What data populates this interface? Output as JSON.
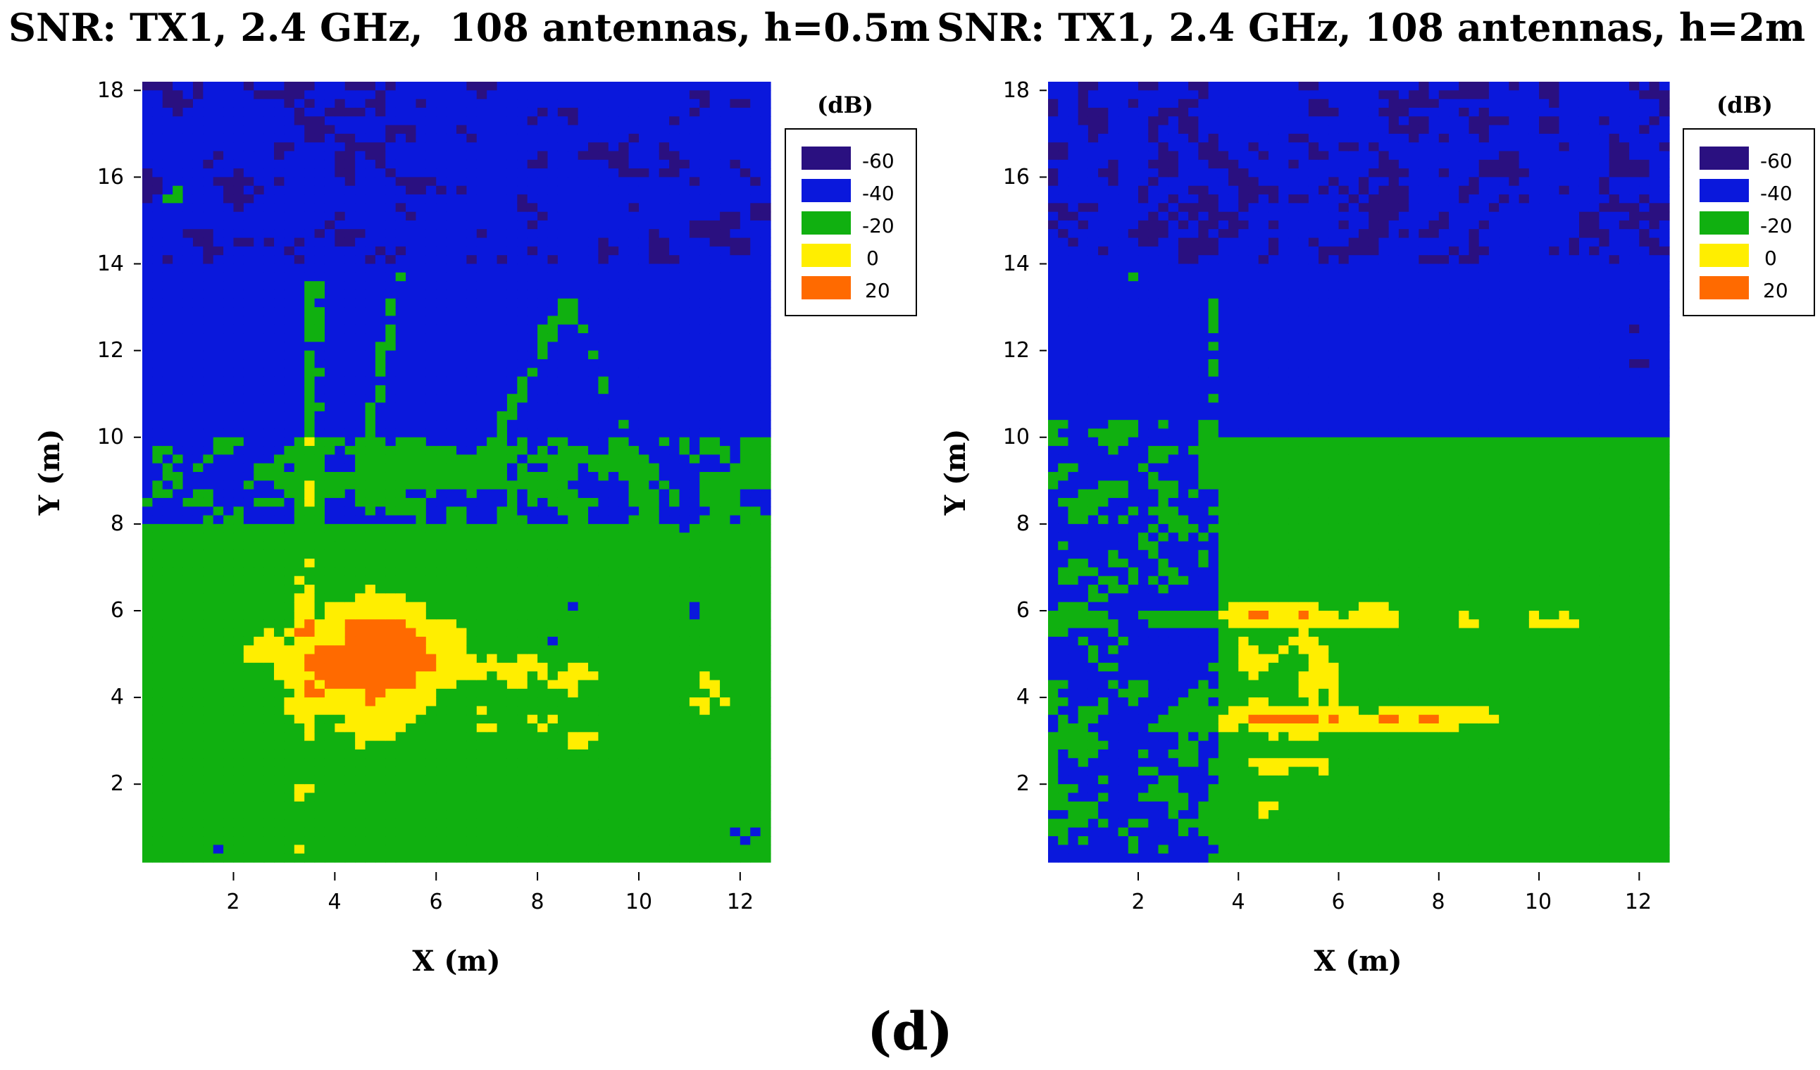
{
  "figure": {
    "caption": "(d)"
  },
  "chart_data": [
    {
      "type": "heatmap",
      "title": "SNR: TX1, 2.4 GHz,  108 antennas, h=0.5m",
      "xlabel": "X (m)",
      "ylabel": "Y (m)",
      "xlim": [
        0.2,
        12.6
      ],
      "ylim": [
        0.2,
        18.2
      ],
      "xticks": [
        2,
        4,
        6,
        8,
        10,
        12
      ],
      "yticks": [
        2,
        4,
        6,
        8,
        10,
        12,
        14,
        16,
        18
      ],
      "colorbar": {
        "title": "(dB)",
        "levels": [
          {
            "value": -60,
            "label": "-60",
            "color": "#2a1080"
          },
          {
            "value": -40,
            "label": "-40",
            "color": "#0a18dc"
          },
          {
            "value": -20,
            "label": "-20",
            "color": "#10b010"
          },
          {
            "value": 0,
            "label": "0",
            "color": "#ffee00"
          },
          {
            "value": 20,
            "label": "20",
            "color": "#ff6a00"
          }
        ]
      },
      "hotspots": [
        {
          "x": 4.6,
          "y": 4.7,
          "sx": 0.9,
          "sy": 0.9,
          "amp": 46
        },
        {
          "x": 5.0,
          "y": 5.6,
          "sx": 0.5,
          "sy": 0.4,
          "amp": 22
        },
        {
          "x": 6.0,
          "y": 4.9,
          "sx": 1.0,
          "sy": 0.4,
          "amp": 16
        },
        {
          "x": 8.4,
          "y": 4.5,
          "sx": 0.8,
          "sy": 0.3,
          "amp": 16
        },
        {
          "x": 5.8,
          "y": 9.2,
          "sx": 0.9,
          "sy": 0.3,
          "amp": 14
        },
        {
          "x": 7.5,
          "y": 3.4,
          "sx": 1.5,
          "sy": 0.5,
          "amp": 10
        },
        {
          "x": 2.6,
          "y": 5.0,
          "sx": 0.6,
          "sy": 0.4,
          "amp": 12
        },
        {
          "x": 11.5,
          "y": 4.0,
          "sx": 1.0,
          "sy": 0.5,
          "amp": 10
        },
        {
          "x": 12.4,
          "y": 9.2,
          "sx": 0.2,
          "sy": 0.3,
          "amp": 18
        }
      ],
      "regions": [
        {
          "x0": 0.2,
          "x1": 12.6,
          "y0": 0.2,
          "y1": 8.0,
          "base": -22
        },
        {
          "x0": 0.2,
          "x1": 12.6,
          "y0": 8.0,
          "y1": 10.0,
          "base": -30
        },
        {
          "x0": 0.2,
          "x1": 12.6,
          "y0": 10.0,
          "y1": 14.0,
          "base": -40
        },
        {
          "x0": 0.2,
          "x1": 12.6,
          "y0": 14.0,
          "y1": 18.2,
          "base": -46
        }
      ],
      "streaks": [
        {
          "x0": 3.4,
          "y0": 5.5,
          "x1": 3.6,
          "y1": 13.5,
          "amp": 18
        },
        {
          "x0": 4.5,
          "y0": 9.0,
          "x1": 5.3,
          "y1": 13.8,
          "amp": 14
        },
        {
          "x0": 7.0,
          "y0": 9.5,
          "x1": 8.6,
          "y1": 13.2,
          "amp": 14
        },
        {
          "x0": 8.6,
          "y0": 13.2,
          "x1": 10.5,
          "y1": 7.5,
          "amp": 12
        },
        {
          "x0": 0.6,
          "y0": 15.0,
          "x1": 1.8,
          "y1": 18.0,
          "amp": 12
        },
        {
          "x0": 3.3,
          "y0": 0.5,
          "x1": 3.6,
          "y1": 5.0,
          "amp": 10
        }
      ]
    },
    {
      "type": "heatmap",
      "title": "SNR: TX1, 2.4 GHz, 108 antennas, h=2m",
      "xlabel": "X (m)",
      "ylabel": "Y (m)",
      "xlim": [
        0.2,
        12.6
      ],
      "ylim": [
        0.2,
        18.2
      ],
      "xticks": [
        2,
        4,
        6,
        8,
        10,
        12
      ],
      "yticks": [
        2,
        4,
        6,
        8,
        10,
        12,
        14,
        16,
        18
      ],
      "colorbar": {
        "title": "(dB)",
        "levels": [
          {
            "value": -60,
            "label": "-60",
            "color": "#2a1080"
          },
          {
            "value": -40,
            "label": "-40",
            "color": "#0a18dc"
          },
          {
            "value": -20,
            "label": "-20",
            "color": "#10b010"
          },
          {
            "value": 0,
            "label": "0",
            "color": "#ffee00"
          },
          {
            "value": 20,
            "label": "20",
            "color": "#ff6a00"
          }
        ]
      },
      "hotspots": [
        {
          "x": 4.8,
          "y": 5.9,
          "sx": 0.8,
          "sy": 0.25,
          "amp": 22
        },
        {
          "x": 6.8,
          "y": 5.9,
          "sx": 0.3,
          "sy": 0.2,
          "amp": 14
        },
        {
          "x": 4.8,
          "y": 3.5,
          "sx": 0.7,
          "sy": 0.25,
          "amp": 26
        },
        {
          "x": 7.2,
          "y": 3.5,
          "sx": 1.3,
          "sy": 0.2,
          "amp": 20
        },
        {
          "x": 5.6,
          "y": 4.6,
          "sx": 0.4,
          "sy": 0.5,
          "amp": 16
        },
        {
          "x": 4.3,
          "y": 4.8,
          "sx": 0.3,
          "sy": 0.3,
          "amp": 12
        },
        {
          "x": 4.8,
          "y": 2.4,
          "sx": 0.5,
          "sy": 0.15,
          "amp": 16
        },
        {
          "x": 4.6,
          "y": 1.4,
          "sx": 0.5,
          "sy": 0.12,
          "amp": 12
        }
      ],
      "regions": [
        {
          "x0": 0.2,
          "x1": 3.7,
          "y0": 0.2,
          "y1": 10.5,
          "base": -32
        },
        {
          "x0": 3.7,
          "x1": 12.6,
          "y0": 0.2,
          "y1": 10.0,
          "base": -20
        },
        {
          "x0": 3.7,
          "x1": 12.6,
          "y0": 10.0,
          "y1": 14.0,
          "base": -42
        },
        {
          "x0": 0.2,
          "x1": 3.7,
          "y0": 10.5,
          "y1": 14.0,
          "base": -42
        },
        {
          "x0": 0.2,
          "x1": 12.6,
          "y0": 14.0,
          "y1": 18.2,
          "base": -48
        }
      ],
      "streaks": [
        {
          "x0": 0.4,
          "y0": 5.8,
          "x1": 12.6,
          "y1": 5.8,
          "amp": 10
        },
        {
          "x0": 3.2,
          "y0": 3.5,
          "x1": 9.2,
          "y1": 3.5,
          "amp": 8
        },
        {
          "x0": 3.4,
          "y0": 9.0,
          "x1": 3.6,
          "y1": 14.0,
          "amp": 10
        },
        {
          "x0": 0.5,
          "y0": 17.8,
          "x1": 2.2,
          "y1": 13.0,
          "amp": 10
        },
        {
          "x0": 9.4,
          "y0": 17.8,
          "x1": 10.6,
          "y1": 14.0,
          "amp": 8
        }
      ]
    }
  ]
}
